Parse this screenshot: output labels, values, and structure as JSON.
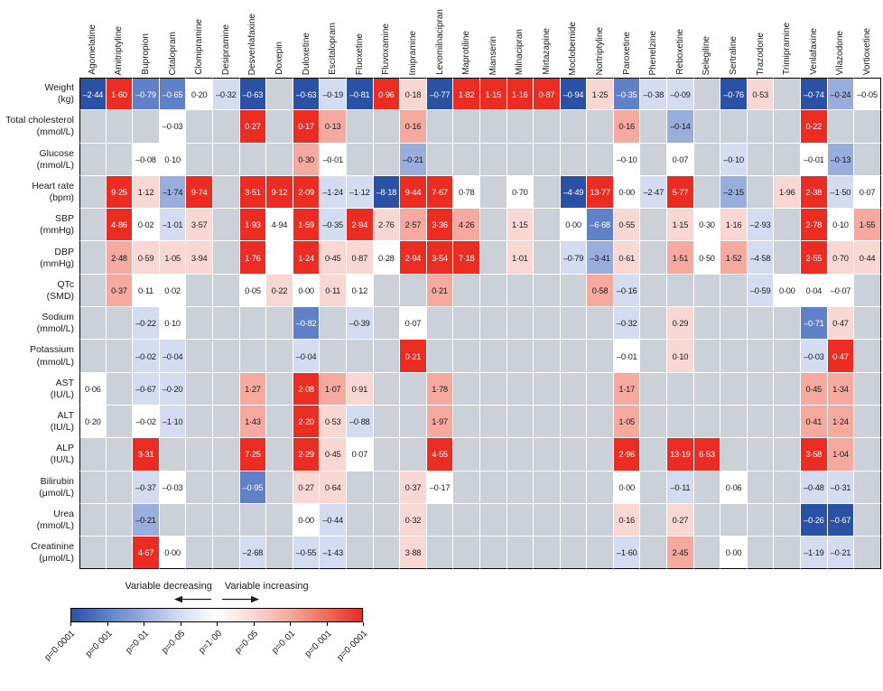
{
  "chart_data": {
    "type": "heatmap",
    "columns": [
      "Agomelatine",
      "Amitriptyline",
      "Bupropion",
      "Citalopram",
      "Clomipramine",
      "Desipramine",
      "Desvenlafaxine",
      "Doxepin",
      "Duloxetine",
      "Escitalopram",
      "Fluoxetine",
      "Fluvoxamine",
      "Imipramine",
      "Levomilnacipran",
      "Maprotiline",
      "Mianserin",
      "Milnacipran",
      "Mirtazapine",
      "Moclobemide",
      "Nortriptyline",
      "Paroxetine",
      "Phenelzine",
      "Reboxetine",
      "Selegiline",
      "Sertraline",
      "Trazodone",
      "Trimipramine",
      "Venlafaxine",
      "Vilazodone",
      "Vortioxetine"
    ],
    "rows": [
      {
        "label": "Weight",
        "unit": "(kg)",
        "cells": [
          [
            "–2·44",
            -4
          ],
          [
            "1·60",
            4
          ],
          [
            "–0·79",
            -3
          ],
          [
            "–0·65",
            -3
          ],
          [
            "0·20",
            0
          ],
          [
            "–0·32",
            -1
          ],
          [
            "–0·63",
            -4
          ],
          null,
          [
            "–0·63",
            -4
          ],
          [
            "–0·19",
            -1
          ],
          [
            "–0·81",
            -4
          ],
          [
            "0·96",
            4
          ],
          [
            "0·18",
            1
          ],
          [
            "–0·77",
            -4
          ],
          [
            "1·82",
            4
          ],
          [
            "1·15",
            4
          ],
          [
            "1·16",
            4
          ],
          [
            "0·87",
            4
          ],
          [
            "–0·94",
            -4
          ],
          [
            "1·25",
            1
          ],
          [
            "–0·35",
            -3
          ],
          [
            "–0·38",
            -1
          ],
          [
            "–0·09",
            -1
          ],
          null,
          [
            "–0·76",
            -4
          ],
          [
            "0·53",
            1
          ],
          null,
          [
            "–0·74",
            -4
          ],
          [
            "–0·24",
            -2
          ],
          [
            "–0·05",
            0
          ]
        ]
      },
      {
        "label": "Total cholesterol",
        "unit": "(mmol/L)",
        "cells": [
          null,
          null,
          null,
          [
            "–0·03",
            0
          ],
          null,
          null,
          [
            "0·27",
            4
          ],
          null,
          [
            "0·17",
            4
          ],
          [
            "0·13",
            2
          ],
          null,
          null,
          [
            "0·16",
            2
          ],
          null,
          null,
          null,
          null,
          null,
          null,
          null,
          [
            "0·16",
            2
          ],
          null,
          [
            "–0·14",
            -2
          ],
          null,
          null,
          null,
          null,
          [
            "0·22",
            4
          ],
          null,
          null
        ]
      },
      {
        "label": "Glucose",
        "unit": "(mmol/L)",
        "cells": [
          null,
          null,
          [
            "–0·08",
            0
          ],
          [
            "0·10",
            0
          ],
          null,
          null,
          null,
          null,
          [
            "0·30",
            2
          ],
          [
            "–0·01",
            0
          ],
          null,
          null,
          [
            "–0·21",
            -2
          ],
          null,
          null,
          null,
          null,
          null,
          null,
          null,
          [
            "–0·10",
            0
          ],
          null,
          [
            "0·07",
            0
          ],
          null,
          [
            "–0·10",
            -1
          ],
          null,
          null,
          [
            "–0·01",
            0
          ],
          [
            "–0·13",
            -2
          ],
          null
        ]
      },
      {
        "label": "Heart rate",
        "unit": "(bpm)",
        "cells": [
          null,
          [
            "9·25",
            4
          ],
          [
            "1·12",
            1
          ],
          [
            "–1·74",
            -2
          ],
          [
            "9·74",
            4
          ],
          null,
          [
            "3·51",
            4
          ],
          [
            "9·12",
            4
          ],
          [
            "2·09",
            4
          ],
          [
            "–1·24",
            -1
          ],
          [
            "–1·12",
            -1
          ],
          [
            "–8·18",
            -4
          ],
          [
            "9·44",
            4
          ],
          [
            "7·67",
            4
          ],
          [
            "0·78",
            0
          ],
          null,
          [
            "0·70",
            0
          ],
          null,
          [
            "–4·49",
            -4
          ],
          [
            "13·77",
            4
          ],
          [
            "0·00",
            0
          ],
          [
            "–2·47",
            -1
          ],
          [
            "5·77",
            4
          ],
          null,
          [
            "–2·15",
            -2
          ],
          null,
          [
            "1·96",
            1
          ],
          [
            "2·38",
            4
          ],
          [
            "–1·50",
            -1
          ],
          [
            "0·07",
            0
          ]
        ]
      },
      {
        "label": "SBP",
        "unit": "(mmHg)",
        "cells": [
          null,
          [
            "4·86",
            4
          ],
          [
            "0·02",
            0
          ],
          [
            "–1·01",
            -1
          ],
          [
            "3·57",
            1
          ],
          null,
          [
            "1·93",
            4
          ],
          [
            "4·94",
            0
          ],
          [
            "1·59",
            4
          ],
          [
            "–0·35",
            -1
          ],
          [
            "2·94",
            4
          ],
          [
            "2·76",
            1
          ],
          [
            "2·57",
            2
          ],
          [
            "3·36",
            4
          ],
          [
            "4·26",
            2
          ],
          null,
          [
            "1·15",
            1
          ],
          null,
          [
            "0·00",
            0
          ],
          [
            "–6·68",
            -3
          ],
          [
            "0·55",
            1
          ],
          null,
          [
            "1·15",
            1
          ],
          [
            "0·30",
            0
          ],
          [
            "1·16",
            1
          ],
          [
            "–2·93",
            -1
          ],
          null,
          [
            "2·78",
            4
          ],
          [
            "0·10",
            0
          ],
          [
            "1·55",
            2
          ]
        ]
      },
      {
        "label": "DBP",
        "unit": "(mmHg)",
        "cells": [
          null,
          [
            "2·48",
            2
          ],
          [
            "0·59",
            1
          ],
          [
            "1·05",
            1
          ],
          [
            "3·94",
            1
          ],
          null,
          [
            "1·76",
            4
          ],
          [
            "",
            0
          ],
          [
            "1·24",
            4
          ],
          [
            "0·45",
            1
          ],
          [
            "0·87",
            1
          ],
          [
            "0·28",
            0
          ],
          [
            "2·94",
            4
          ],
          [
            "3·54",
            4
          ],
          [
            "7·18",
            4
          ],
          null,
          [
            "1·01",
            1
          ],
          null,
          [
            "–0·79",
            -1
          ],
          [
            "–3·41",
            -2
          ],
          [
            "0·61",
            1
          ],
          null,
          [
            "1·51",
            2
          ],
          [
            "0·50",
            0
          ],
          [
            "1·52",
            2
          ],
          [
            "–4·58",
            -1
          ],
          null,
          [
            "2·55",
            4
          ],
          [
            "0·70",
            1
          ],
          [
            "0·44",
            1
          ]
        ]
      },
      {
        "label": "QTc",
        "unit": "(SMD)",
        "cells": [
          null,
          [
            "0·37",
            2
          ],
          [
            "0·11",
            0
          ],
          [
            "0·02",
            0
          ],
          null,
          null,
          [
            "0·05",
            0
          ],
          [
            "0·22",
            1
          ],
          [
            "0·00",
            0
          ],
          [
            "0·11",
            1
          ],
          [
            "0·12",
            0
          ],
          null,
          null,
          [
            "0·21",
            2
          ],
          null,
          null,
          null,
          null,
          null,
          [
            "0·58",
            2
          ],
          [
            "–0·16",
            -1
          ],
          null,
          null,
          null,
          null,
          [
            "–0·59",
            -1
          ],
          [
            "0·00",
            0
          ],
          [
            "0·04",
            0
          ],
          [
            "–0·07",
            0
          ],
          null
        ]
      },
      {
        "label": "Sodium",
        "unit": "(mmol/L)",
        "cells": [
          null,
          null,
          [
            "–0·22",
            -1
          ],
          [
            "0·10",
            0
          ],
          null,
          null,
          null,
          null,
          [
            "–0·82",
            -3
          ],
          null,
          [
            "–0·39",
            -1
          ],
          null,
          [
            "0·07",
            0
          ],
          null,
          null,
          null,
          null,
          null,
          null,
          null,
          [
            "–0·32",
            -1
          ],
          null,
          [
            "0·29",
            1
          ],
          null,
          null,
          null,
          null,
          [
            "–0·71",
            -3
          ],
          [
            "0·47",
            1
          ],
          null
        ]
      },
      {
        "label": "Potassium",
        "unit": "(mmol/L)",
        "cells": [
          null,
          null,
          [
            "–0·02",
            -1
          ],
          [
            "–0·04",
            -1
          ],
          null,
          null,
          null,
          null,
          [
            "–0·04",
            -1
          ],
          null,
          null,
          null,
          [
            "0·21",
            4
          ],
          null,
          null,
          null,
          null,
          null,
          null,
          null,
          [
            "–0·01",
            0
          ],
          null,
          [
            "0·10",
            1
          ],
          null,
          null,
          null,
          null,
          [
            "–0·03",
            -1
          ],
          [
            "0·47",
            4
          ],
          null
        ]
      },
      {
        "label": "AST",
        "unit": "(IU/L)",
        "cells": [
          [
            "0·06",
            0
          ],
          null,
          [
            "–0·67",
            -1
          ],
          [
            "–0·20",
            -1
          ],
          null,
          null,
          [
            "1·27",
            2
          ],
          null,
          [
            "2·08",
            4
          ],
          [
            "1·07",
            2
          ],
          [
            "0·91",
            1
          ],
          null,
          null,
          [
            "1·78",
            2
          ],
          null,
          null,
          null,
          null,
          null,
          null,
          [
            "1·17",
            2
          ],
          null,
          null,
          null,
          null,
          null,
          null,
          [
            "0·45",
            2
          ],
          [
            "1·34",
            2
          ],
          null
        ]
      },
      {
        "label": "ALT",
        "unit": "(IU/L)",
        "cells": [
          [
            "0·20",
            0
          ],
          null,
          [
            "–0·02",
            0
          ],
          [
            "–1·10",
            -1
          ],
          null,
          null,
          [
            "1·43",
            2
          ],
          null,
          [
            "2·20",
            4
          ],
          [
            "0·53",
            1
          ],
          [
            "–0·88",
            -1
          ],
          null,
          null,
          [
            "1·97",
            2
          ],
          null,
          null,
          null,
          null,
          null,
          null,
          [
            "1·05",
            2
          ],
          null,
          null,
          null,
          null,
          null,
          null,
          [
            "0·41",
            2
          ],
          [
            "1·24",
            2
          ],
          null
        ]
      },
      {
        "label": "ALP",
        "unit": "(IU/L)",
        "cells": [
          null,
          null,
          [
            "3·31",
            4
          ],
          null,
          null,
          null,
          [
            "7·25",
            4
          ],
          null,
          [
            "2·29",
            4
          ],
          [
            "0·45",
            1
          ],
          [
            "0·07",
            0
          ],
          null,
          null,
          [
            "4·55",
            4
          ],
          null,
          null,
          null,
          null,
          null,
          null,
          [
            "2·96",
            4
          ],
          null,
          [
            "13·19",
            4
          ],
          [
            "6·53",
            4
          ],
          null,
          null,
          null,
          [
            "3·58",
            4
          ],
          [
            "1·04",
            2
          ],
          null
        ]
      },
      {
        "label": "Bilirubin",
        "unit": "(μmol/L)",
        "cells": [
          null,
          null,
          [
            "–0·37",
            -1
          ],
          [
            "–0·03",
            0
          ],
          null,
          null,
          [
            "–0·95",
            -3
          ],
          null,
          [
            "0·27",
            1
          ],
          [
            "0·64",
            1
          ],
          null,
          null,
          [
            "0·37",
            1
          ],
          [
            "–0·17",
            0
          ],
          null,
          null,
          null,
          null,
          null,
          null,
          [
            "0·00",
            0
          ],
          null,
          [
            "–0·11",
            -1
          ],
          null,
          [
            "0·06",
            0
          ],
          null,
          null,
          [
            "–0·48",
            -1
          ],
          [
            "–0·31",
            -1
          ],
          null
        ]
      },
      {
        "label": "Urea",
        "unit": "(mmol/L)",
        "cells": [
          null,
          null,
          [
            "–0·21",
            -2
          ],
          null,
          null,
          null,
          null,
          null,
          [
            "0·00",
            0
          ],
          [
            "–0·44",
            -1
          ],
          null,
          null,
          [
            "0·32",
            1
          ],
          null,
          null,
          null,
          null,
          null,
          null,
          null,
          [
            "0·16",
            1
          ],
          null,
          [
            "0·27",
            1
          ],
          null,
          null,
          null,
          null,
          [
            "–0·26",
            -4
          ],
          [
            "–0·67",
            -4
          ],
          null
        ]
      },
      {
        "label": "Creatinine",
        "unit": "(μmol/L)",
        "cells": [
          null,
          null,
          [
            "4·67",
            4
          ],
          [
            "0·00",
            0
          ],
          null,
          null,
          [
            "–2·68",
            -1
          ],
          null,
          [
            "–0·55",
            -1
          ],
          [
            "–1·43",
            -1
          ],
          null,
          null,
          [
            "3·88",
            1
          ],
          null,
          null,
          null,
          null,
          null,
          null,
          null,
          [
            "–1·60",
            -1
          ],
          null,
          [
            "2·45",
            2
          ],
          null,
          [
            "0·00",
            0
          ],
          null,
          null,
          [
            "–1·19",
            -1
          ],
          [
            "–0·21",
            -1
          ],
          null
        ]
      }
    ],
    "legend": {
      "decreasing": "Variable decreasing",
      "increasing": "Variable increasing",
      "ticks": [
        "p=0·0001",
        "p=0·001",
        "p=0·01",
        "p=0·05",
        "p=1·00",
        "p=0·05",
        "p=0·01",
        "p=0·001",
        "p=0·0001"
      ]
    },
    "palette": {
      "none": "#cbd0d9",
      "m4": "#2b51a5",
      "m3": "#6080c7",
      "m2": "#9aaedd",
      "m1": "#d3dcf1",
      "z0": "#ffffff",
      "p1": "#f9d8d3",
      "p2": "#f5a99f",
      "p3": "#ef6e5d",
      "p4": "#ea2c23"
    }
  }
}
